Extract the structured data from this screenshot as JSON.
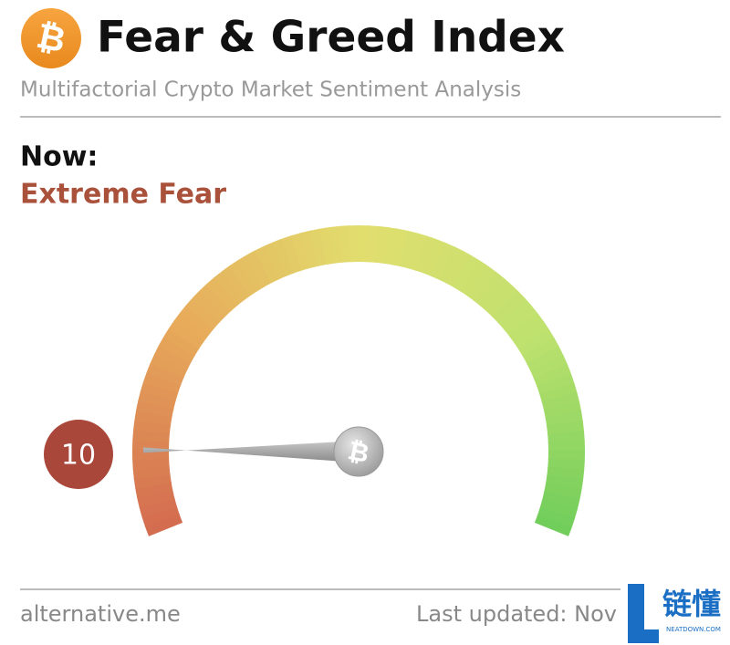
{
  "header": {
    "title": "Fear & Greed Index",
    "subtitle": "Multifactorial Crypto Market Sentiment Analysis"
  },
  "now": {
    "label": "Now:",
    "classification": "Extreme Fear"
  },
  "gauge": {
    "value": 10,
    "range": [
      0,
      100
    ]
  },
  "footer": {
    "source": "alternative.me",
    "updated": "Last updated: Nov"
  },
  "watermark": {
    "text": "链懂",
    "site": "NEATDOWN.COM"
  }
}
